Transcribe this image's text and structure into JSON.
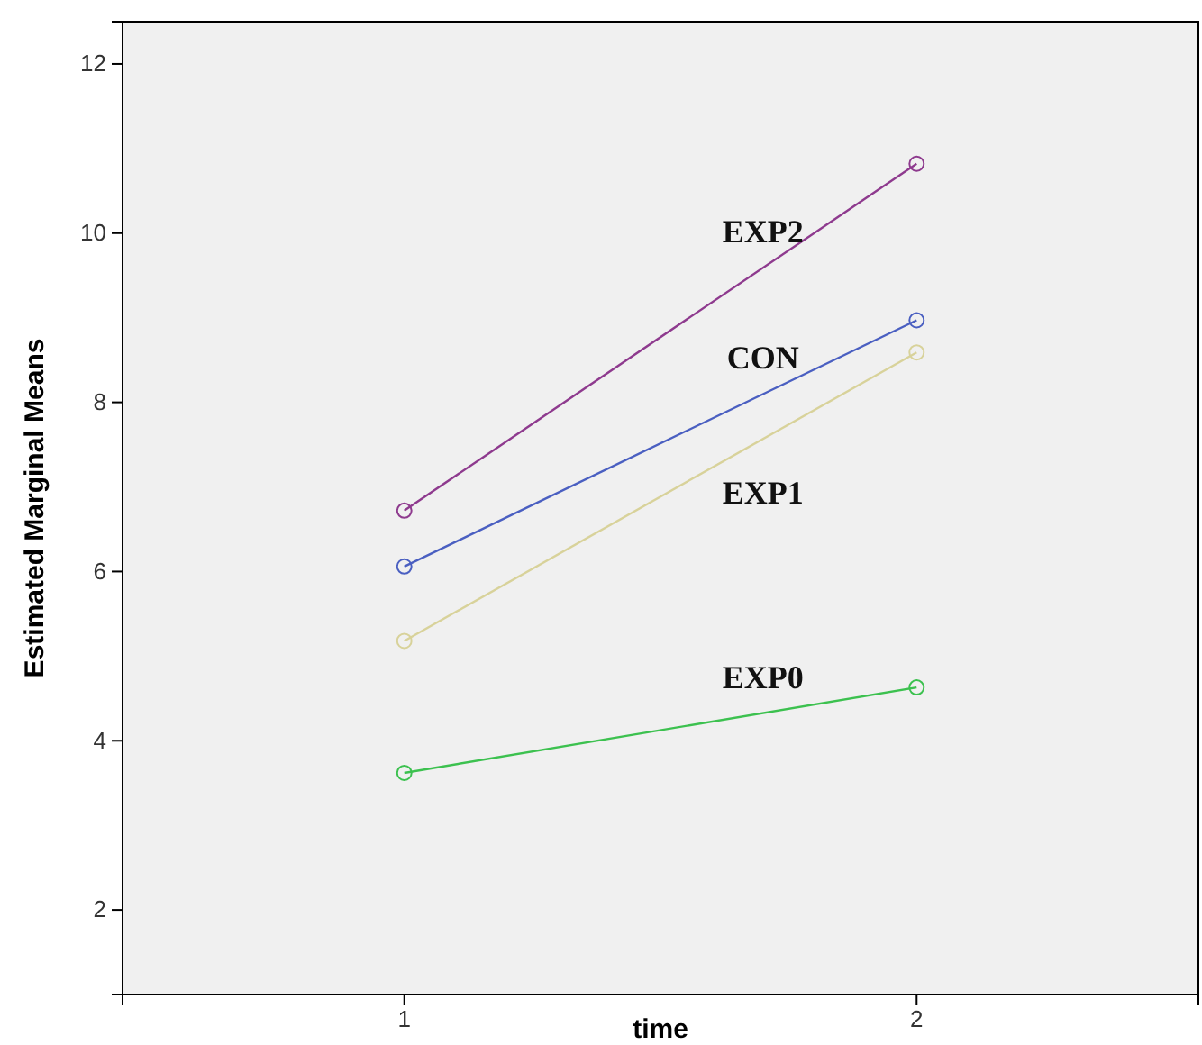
{
  "chart_data": {
    "type": "line",
    "xlabel": "time",
    "ylabel": "Estimated Marginal Means",
    "categories": [
      "1",
      "2"
    ],
    "ylim": [
      1,
      12.5
    ],
    "yticks": [
      2,
      4,
      6,
      8,
      10,
      12
    ],
    "marker": "circle",
    "grid": false,
    "series": [
      {
        "name": "EXP2",
        "color": "#8e3a8e",
        "values": [
          6.72,
          10.82
        ]
      },
      {
        "name": "CON",
        "color": "#4a5fc1",
        "values": [
          6.06,
          8.97
        ]
      },
      {
        "name": "EXP1",
        "color": "#d8d29a",
        "values": [
          5.18,
          8.59
        ]
      },
      {
        "name": "EXP0",
        "color": "#3cc14f",
        "values": [
          3.62,
          4.63
        ]
      }
    ]
  }
}
